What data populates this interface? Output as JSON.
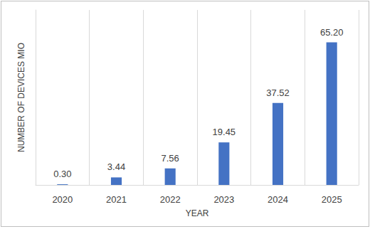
{
  "chart_data": {
    "type": "bar",
    "categories": [
      "2020",
      "2021",
      "2022",
      "2023",
      "2024",
      "2025"
    ],
    "values": [
      0.3,
      3.44,
      7.56,
      19.45,
      37.52,
      65.2
    ],
    "value_labels": [
      "0.30",
      "3.44",
      "7.56",
      "19.45",
      "37.52",
      "65.20"
    ],
    "color": "#4472c4",
    "x_label": "YEAR",
    "y_label": "NUMBER OF DEVICES MIO",
    "ylim": [
      0,
      80
    ],
    "grid": true,
    "data_labels": true,
    "tick_labels": "x"
  }
}
